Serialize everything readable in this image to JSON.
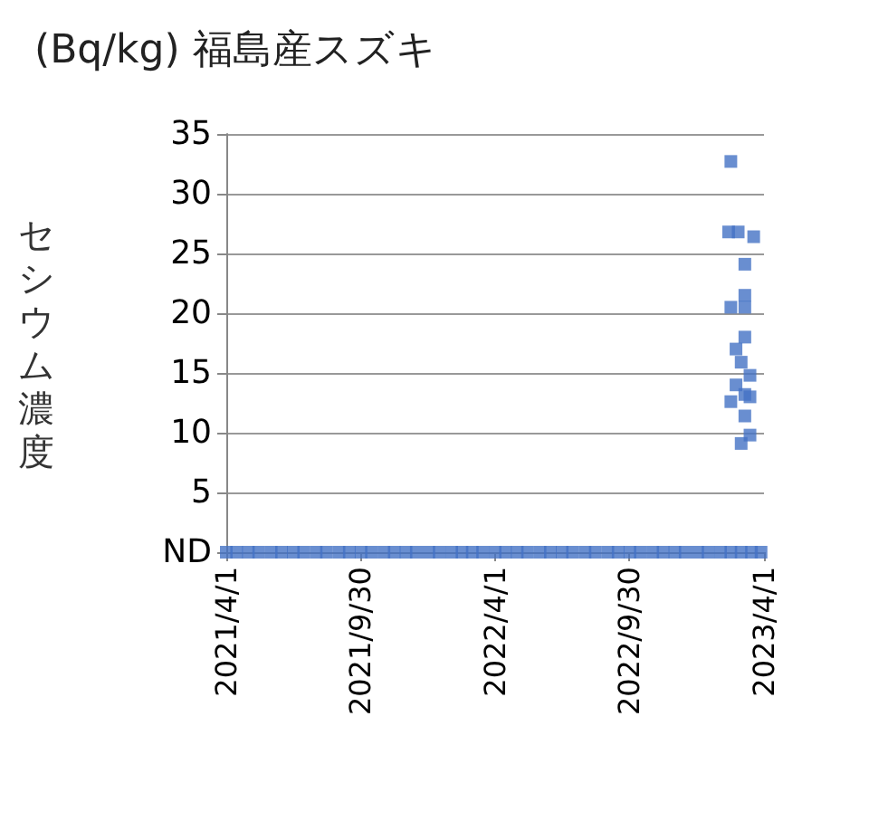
{
  "chart_data": {
    "type": "scatter",
    "title": "(Bq/kg) 福島産スズキ",
    "ylabel": "セシウム濃度",
    "x": [
      "2021-04-01",
      "2021-04-15",
      "2021-05-01",
      "2021-05-15",
      "2021-06-01",
      "2021-06-15",
      "2021-07-01",
      "2021-07-15",
      "2021-08-01",
      "2021-08-15",
      "2021-09-01",
      "2021-09-15",
      "2021-10-01",
      "2021-10-15",
      "2021-11-01",
      "2021-11-15",
      "2021-12-01",
      "2021-12-15",
      "2022-01-01",
      "2022-01-15",
      "2022-02-01",
      "2022-02-15",
      "2022-03-01",
      "2022-03-15",
      "2022-04-01",
      "2022-04-15",
      "2022-05-01",
      "2022-05-15",
      "2022-06-01",
      "2022-06-15",
      "2022-07-01",
      "2022-07-15",
      "2022-08-01",
      "2022-08-15",
      "2022-09-01",
      "2022-09-15",
      "2022-10-01",
      "2022-10-15",
      "2022-11-01",
      "2022-11-15",
      "2022-12-01",
      "2022-12-15",
      "2023-01-01",
      "2023-01-15",
      "2023-02-01",
      "2023-02-15",
      "2023-03-01",
      "2023-03-15",
      "2023-03-28",
      "2023-02-15",
      "2023-02-12",
      "2023-02-25",
      "2023-03-18",
      "2023-03-06",
      "2023-03-06",
      "2023-02-15",
      "2023-03-06",
      "2023-03-06",
      "2023-02-22",
      "2023-03-01",
      "2023-03-13",
      "2023-02-22",
      "2023-03-06",
      "2023-02-15",
      "2023-03-13",
      "2023-03-06",
      "2023-03-13",
      "2023-03-01"
    ],
    "values": [
      0,
      0,
      0,
      0,
      0,
      0,
      0,
      0,
      0,
      0,
      0,
      0,
      0,
      0,
      0,
      0,
      0,
      0,
      0,
      0,
      0,
      0,
      0,
      0,
      0,
      0,
      0,
      0,
      0,
      0,
      0,
      0,
      0,
      0,
      0,
      0,
      0,
      0,
      0,
      0,
      0,
      0,
      0,
      0,
      0,
      0,
      0,
      0,
      0,
      32.7,
      26.8,
      26.8,
      26.4,
      24.1,
      21.5,
      20.5,
      20.5,
      18,
      17,
      15.9,
      14.8,
      14,
      13.2,
      12.6,
      13,
      11.4,
      9.8,
      9.1
    ],
    "color": "#4472c4",
    "marker": "square",
    "xlim": [
      "2021-04-01",
      "2023-04-01"
    ],
    "xticks": [
      {
        "value": "2021-04-01",
        "label": "2021/4/1"
      },
      {
        "value": "2021-09-30",
        "label": "2021/9/30"
      },
      {
        "value": "2022-04-01",
        "label": "2022/4/1"
      },
      {
        "value": "2022-09-30",
        "label": "2022/9/30"
      },
      {
        "value": "2023-04-01",
        "label": "2023/4/1"
      }
    ],
    "ylim": [
      0,
      35
    ],
    "yticks": [
      {
        "value": 0,
        "label": "ND"
      },
      5,
      10,
      15,
      20,
      25,
      30,
      35
    ],
    "grid": "y"
  }
}
